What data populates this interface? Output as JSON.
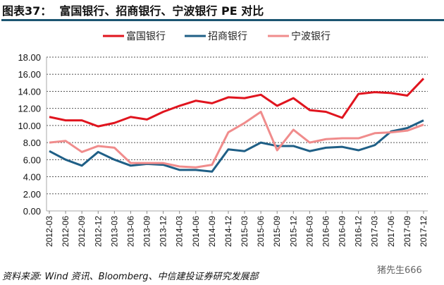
{
  "header": {
    "title": "图表37：  富国银行、招商银行、宁波银行 PE 对比"
  },
  "footer": {
    "source": "资料来源: Wind 资讯、Bloomberg、中信建投证券研究发展部",
    "watermark": "猪先生666"
  },
  "chart_data": {
    "type": "line",
    "title": "",
    "xlabel": "",
    "ylabel": "",
    "ylim": [
      0,
      18
    ],
    "yticks": [
      "0.00",
      "2.00",
      "4.00",
      "6.00",
      "8.00",
      "10.00",
      "12.00",
      "14.00",
      "16.00",
      "18.00"
    ],
    "grid": true,
    "legend_position": "top",
    "categories": [
      "2012-03",
      "2012-06",
      "2012-09",
      "2012-12",
      "2013-03",
      "2013-06",
      "2013-09",
      "2013-12",
      "2014-03",
      "2014-06",
      "2014-09",
      "2014-12",
      "2015-03",
      "2015-06",
      "2015-09",
      "2015-12",
      "2016-03",
      "2016-06",
      "2016-09",
      "2016-12",
      "2017-03",
      "2017-06",
      "2017-09",
      "2017-12"
    ],
    "series": [
      {
        "name": "富国银行",
        "color": "#e0141e",
        "values": [
          11.0,
          10.6,
          10.6,
          9.9,
          10.3,
          11.0,
          10.7,
          11.6,
          12.3,
          12.9,
          12.6,
          13.3,
          13.2,
          13.6,
          12.3,
          13.2,
          11.8,
          11.6,
          10.9,
          13.7,
          13.9,
          13.8,
          13.5,
          15.5
        ]
      },
      {
        "name": "招商银行",
        "color": "#1f5f86",
        "values": [
          7.0,
          6.0,
          5.3,
          6.9,
          6.0,
          5.3,
          5.5,
          5.4,
          4.8,
          4.8,
          4.6,
          7.2,
          7.0,
          8.0,
          7.6,
          7.6,
          7.0,
          7.4,
          7.5,
          7.1,
          7.7,
          9.3,
          9.7,
          10.6
        ]
      },
      {
        "name": "宁波银行",
        "color": "#f08c8c",
        "values": [
          8.0,
          8.2,
          6.9,
          7.6,
          7.4,
          5.6,
          5.6,
          5.6,
          5.2,
          5.1,
          5.4,
          9.2,
          10.3,
          11.6,
          7.1,
          9.5,
          8.0,
          8.4,
          8.5,
          8.5,
          9.1,
          9.2,
          9.4,
          10.1
        ]
      }
    ]
  }
}
